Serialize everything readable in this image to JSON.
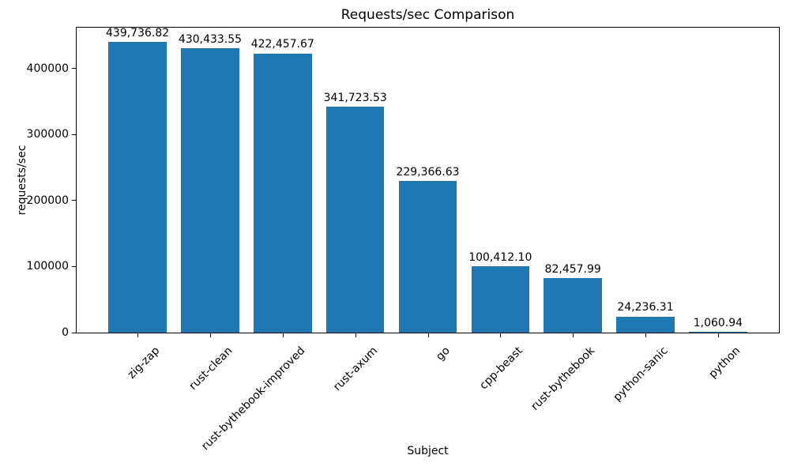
{
  "chart_data": {
    "type": "bar",
    "title": "Requests/sec Comparison",
    "xlabel": "Subject",
    "ylabel": "requests/sec",
    "categories": [
      "zig-zap",
      "rust-clean",
      "rust-bythebook-improved",
      "rust-axum",
      "go",
      "cpp-beast",
      "rust-bythebook",
      "python-sanic",
      "python"
    ],
    "values": [
      439736.82,
      430433.55,
      422457.67,
      341723.53,
      229366.63,
      100412.1,
      82457.99,
      24236.31,
      1060.94
    ],
    "value_labels": [
      "439,736.82",
      "430,433.55",
      "422,457.67",
      "341,723.53",
      "229,366.63",
      "100,412.10",
      "82,457.99",
      "24,236.31",
      "1,060.94"
    ],
    "ylim": [
      0,
      461724
    ],
    "yticks": [
      0,
      100000,
      200000,
      300000,
      400000
    ],
    "ytick_labels": [
      "0",
      "100000",
      "200000",
      "300000",
      "400000"
    ],
    "bar_color": "#1f77b4",
    "axis_color": "#000000",
    "background_color": "#ffffff",
    "grid": false,
    "legend_position": "none",
    "x_tick_rotation_deg": 45
  }
}
